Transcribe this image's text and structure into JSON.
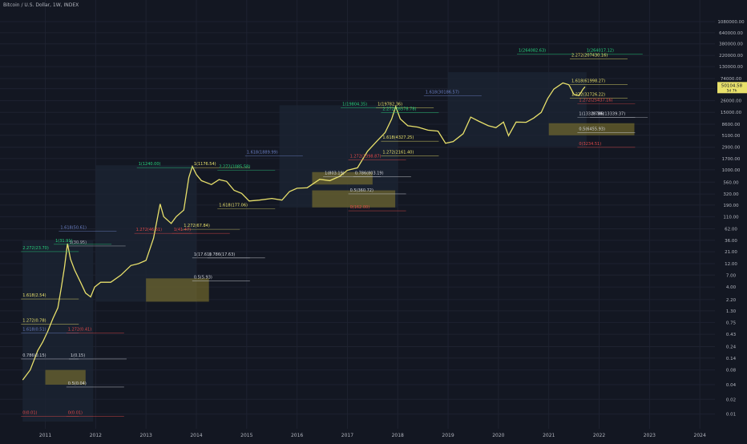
{
  "header": {
    "title": "Bitcoin / U.S. Dollar, 1W, INDEX"
  },
  "price_tag": {
    "price": "50104.58",
    "sub": "5d 7h"
  },
  "chart_data": {
    "type": "line",
    "title": "Bitcoin / U.S. Dollar, 1W, INDEX",
    "scale": "log",
    "ylim": [
      0.005,
      3000000
    ],
    "xlim": [
      2010.1,
      2024.3
    ],
    "y_ticks": [
      0.01,
      0.02,
      0.04,
      0.08,
      0.14,
      0.24,
      0.43,
      0.75,
      1.3,
      2.2,
      4.0,
      7.0,
      12,
      21,
      36,
      62,
      110,
      190,
      320,
      560,
      1000,
      1700,
      2900,
      5100,
      8600,
      15000,
      26000,
      46000,
      74000,
      130000,
      220000,
      380000,
      640000,
      1080000
    ],
    "y_tick_labels": [
      "0.01",
      "0.02",
      "0.04",
      "0.08",
      "0.14",
      "0.24",
      "0.43",
      "0.75",
      "1.30",
      "2.20",
      "4.00",
      "7.00",
      "12.00",
      "21.00",
      "36.00",
      "62.00",
      "110.00",
      "190.00",
      "320.00",
      "560.00",
      "1000.00",
      "1700.00",
      "2900.00",
      "5100.00",
      "8600.00",
      "15000.00",
      "26000.00",
      "46000.00",
      "74000.00",
      "130000.00",
      "220000.00",
      "380000.00",
      "640000.00",
      "1080000.00"
    ],
    "x_ticks": [
      2011,
      2012,
      2013,
      2014,
      2015,
      2016,
      2017,
      2018,
      2019,
      2020,
      2021,
      2022,
      2023,
      2024
    ],
    "x_tick_labels": [
      "2011",
      "2012",
      "2013",
      "2014",
      "2015",
      "2016",
      "2017",
      "2018",
      "2019",
      "2020",
      "2021",
      "2022",
      "2023",
      "2024"
    ],
    "series": [
      {
        "color": "#e8e06b",
        "points": [
          [
            2010.55,
            0.05
          ],
          [
            2010.7,
            0.08
          ],
          [
            2010.85,
            0.2
          ],
          [
            2010.95,
            0.3
          ],
          [
            2011.05,
            0.5
          ],
          [
            2011.15,
            0.9
          ],
          [
            2011.25,
            1.5
          ],
          [
            2011.32,
            4
          ],
          [
            2011.38,
            10
          ],
          [
            2011.44,
            30.95
          ],
          [
            2011.5,
            15
          ],
          [
            2011.58,
            9
          ],
          [
            2011.7,
            5
          ],
          [
            2011.8,
            3
          ],
          [
            2011.9,
            2.5
          ],
          [
            2011.98,
            4
          ],
          [
            2012.1,
            5
          ],
          [
            2012.3,
            5
          ],
          [
            2012.5,
            7
          ],
          [
            2012.7,
            11
          ],
          [
            2012.85,
            12
          ],
          [
            2013.0,
            14
          ],
          [
            2013.15,
            40
          ],
          [
            2013.28,
            200
          ],
          [
            2013.35,
            110
          ],
          [
            2013.5,
            80
          ],
          [
            2013.6,
            110
          ],
          [
            2013.75,
            150
          ],
          [
            2013.85,
            700
          ],
          [
            2013.92,
            1176.54
          ],
          [
            2014.0,
            800
          ],
          [
            2014.1,
            600
          ],
          [
            2014.3,
            500
          ],
          [
            2014.45,
            630
          ],
          [
            2014.6,
            580
          ],
          [
            2014.75,
            380
          ],
          [
            2014.9,
            330
          ],
          [
            2015.05,
            230
          ],
          [
            2015.25,
            240
          ],
          [
            2015.5,
            260
          ],
          [
            2015.7,
            240
          ],
          [
            2015.85,
            360
          ],
          [
            2016.0,
            420
          ],
          [
            2016.2,
            430
          ],
          [
            2016.45,
            640
          ],
          [
            2016.65,
            600
          ],
          [
            2016.85,
            740
          ],
          [
            2017.0,
            980
          ],
          [
            2017.2,
            1100
          ],
          [
            2017.4,
            2400
          ],
          [
            2017.6,
            4000
          ],
          [
            2017.75,
            5800
          ],
          [
            2017.88,
            11000
          ],
          [
            2017.96,
            19804.35
          ],
          [
            2018.05,
            11000
          ],
          [
            2018.2,
            8000
          ],
          [
            2018.4,
            7500
          ],
          [
            2018.6,
            6500
          ],
          [
            2018.8,
            6200
          ],
          [
            2018.95,
            3500
          ],
          [
            2019.1,
            3800
          ],
          [
            2019.3,
            5500
          ],
          [
            2019.45,
            12000
          ],
          [
            2019.6,
            10000
          ],
          [
            2019.8,
            8000
          ],
          [
            2019.95,
            7300
          ],
          [
            2020.1,
            9500
          ],
          [
            2020.2,
            5000
          ],
          [
            2020.35,
            9500
          ],
          [
            2020.55,
            9400
          ],
          [
            2020.7,
            11500
          ],
          [
            2020.85,
            15000
          ],
          [
            2020.98,
            29000
          ],
          [
            2021.1,
            45000
          ],
          [
            2021.28,
            60000
          ],
          [
            2021.4,
            55000
          ],
          [
            2021.5,
            35000
          ],
          [
            2021.6,
            33000
          ],
          [
            2021.68,
            45000
          ],
          [
            2021.72,
            50104.58
          ]
        ]
      }
    ],
    "annotations": [
      {
        "text": "2.272(23.70)",
        "x": 2010.55,
        "y": 23.7,
        "color": "#26d07c"
      },
      {
        "text": "1(31.91)",
        "x": 2011.2,
        "y": 33.5,
        "color": "#26d07c"
      },
      {
        "text": "1(30.95)",
        "x": 2011.48,
        "y": 30.95,
        "color": "#b2b5be"
      },
      {
        "text": "1.618(2.54)",
        "x": 2010.55,
        "y": 2.54,
        "color": "#e8e06b"
      },
      {
        "text": "1.272(0.78)",
        "x": 2010.55,
        "y": 0.78,
        "color": "#e8e06b"
      },
      {
        "text": "1.618(0.51)",
        "x": 2010.55,
        "y": 0.51,
        "color": "#6a7ec2"
      },
      {
        "text": "1.272(0.41)",
        "x": 2011.45,
        "y": 0.51,
        "color": "#e04848"
      },
      {
        "text": "0.786(0.15)",
        "x": 2010.55,
        "y": 0.15,
        "color": "#d1d4dc"
      },
      {
        "text": "1(0.15)",
        "x": 2011.5,
        "y": 0.15,
        "color": "#d1d4dc"
      },
      {
        "text": "0.5(0.04)",
        "x": 2011.45,
        "y": 0.04,
        "color": "#d1d4dc"
      },
      {
        "text": "0(0.01)",
        "x": 2010.55,
        "y": 0.01,
        "color": "#e04848"
      },
      {
        "text": "0(0.01)",
        "x": 2011.45,
        "y": 0.01,
        "color": "#e04848"
      },
      {
        "text": "1(1240.00)",
        "x": 2012.85,
        "y": 1240,
        "color": "#26d07c"
      },
      {
        "text": "1(1176.54)",
        "x": 2013.95,
        "y": 1240,
        "color": "#e8e06b"
      },
      {
        "text": "2.272(1085.58)",
        "x": 2014.45,
        "y": 1085.58,
        "color": "#26d07c"
      },
      {
        "text": "1.618(177.06)",
        "x": 2014.45,
        "y": 177.06,
        "color": "#e8e06b"
      },
      {
        "text": "1.272(67.84)",
        "x": 2013.75,
        "y": 67.84,
        "color": "#e8e06b"
      },
      {
        "text": "1.618(50.61)",
        "x": 2011.3,
        "y": 62,
        "color": "#6a7ec2"
      },
      {
        "text": "1.272(46.61)",
        "x": 2012.8,
        "y": 56,
        "color": "#e04848"
      },
      {
        "text": "1(41.47)",
        "x": 2013.55,
        "y": 56,
        "color": "#e04848"
      },
      {
        "text": "1(17.61)",
        "x": 2013.95,
        "y": 17.61,
        "color": "#d1d4dc"
      },
      {
        "text": "0.786(17.63)",
        "x": 2014.25,
        "y": 17.63,
        "color": "#d1d4dc"
      },
      {
        "text": "0.5(5.93)",
        "x": 2013.95,
        "y": 5.93,
        "color": "#d1d4dc"
      },
      {
        "text": "1(19804.35)",
        "x": 2016.9,
        "y": 21000,
        "color": "#26d07c"
      },
      {
        "text": "1(19782.36)",
        "x": 2017.6,
        "y": 21000,
        "color": "#e8e06b"
      },
      {
        "text": "2.272(16578.78)",
        "x": 2017.7,
        "y": 16578.78,
        "color": "#26d07c"
      },
      {
        "text": "1.618(4327.25)",
        "x": 2017.7,
        "y": 4327.25,
        "color": "#e8e06b"
      },
      {
        "text": "1.272(2161.40)",
        "x": 2017.7,
        "y": 2161.4,
        "color": "#e8e06b"
      },
      {
        "text": "1.618(1889.99)",
        "x": 2015.0,
        "y": 2161.4,
        "color": "#6a7ec2"
      },
      {
        "text": "1.272(1398.87)",
        "x": 2017.05,
        "y": 1800,
        "color": "#e04848"
      },
      {
        "text": "1(803.19)",
        "x": 2016.55,
        "y": 803.19,
        "color": "#d1d4dc"
      },
      {
        "text": "0.786(803.19)",
        "x": 2017.15,
        "y": 803.19,
        "color": "#d1d4dc"
      },
      {
        "text": "0.5(360.72)",
        "x": 2017.05,
        "y": 360.72,
        "color": "#d1d4dc"
      },
      {
        "text": "0(162.00)",
        "x": 2017.05,
        "y": 162,
        "color": "#e04848"
      },
      {
        "text": "1(264082.63)",
        "x": 2020.4,
        "y": 264082.63,
        "color": "#26d07c"
      },
      {
        "text": "1(264017.12)",
        "x": 2021.75,
        "y": 264082.63,
        "color": "#26d07c"
      },
      {
        "text": "2.272(207430.16)",
        "x": 2021.45,
        "y": 207430.16,
        "color": "#e8e06b"
      },
      {
        "text": "1.618(61998.27)",
        "x": 2021.45,
        "y": 61998.27,
        "color": "#e8e06b"
      },
      {
        "text": "1.272(32726.22)",
        "x": 2021.45,
        "y": 32726.22,
        "color": "#e8e06b"
      },
      {
        "text": "1.618(30186.57)",
        "x": 2018.55,
        "y": 37000,
        "color": "#6a7ec2"
      },
      {
        "text": "1.272(25437.16)",
        "x": 2021.6,
        "y": 25437.16,
        "color": "#e04848"
      },
      {
        "text": "1(13328.38)",
        "x": 2021.6,
        "y": 13328.38,
        "color": "#d1d4dc"
      },
      {
        "text": "0.786(13339.37)",
        "x": 2021.85,
        "y": 13328.38,
        "color": "#d1d4dc"
      },
      {
        "text": "0.5(6455.93)",
        "x": 2021.6,
        "y": 6455.93,
        "color": "#d1d4dc"
      },
      {
        "text": "0(3234.51)",
        "x": 2021.6,
        "y": 3234.51,
        "color": "#e04848"
      }
    ]
  }
}
